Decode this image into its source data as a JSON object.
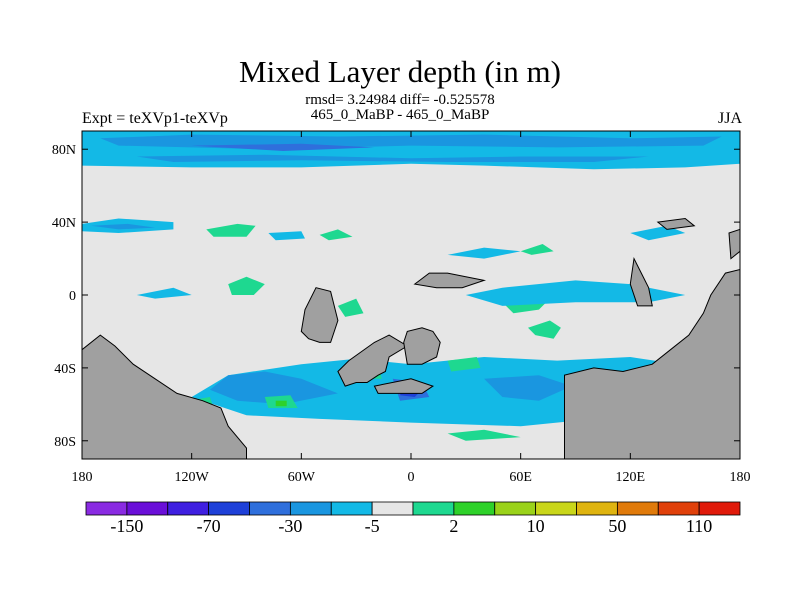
{
  "header": {
    "title": "Mixed Layer depth (in m)",
    "subtitle_line1": "rmsd= 3.24984 diff= -0.525578",
    "subtitle_line2": "465_0_MaBP - 465_0_MaBP",
    "left_label": "Expt = teXVp1-teXVp",
    "right_label": "JJA"
  },
  "chart_data": {
    "type": "heatmap",
    "title": "Mixed Layer depth (in m)",
    "xlabel": "",
    "ylabel": "",
    "x_range": [
      -180,
      180
    ],
    "y_range": [
      -90,
      90
    ],
    "x_ticks": [
      {
        "value": -180,
        "label": "180"
      },
      {
        "value": -120,
        "label": "120W"
      },
      {
        "value": -60,
        "label": "60W"
      },
      {
        "value": 0,
        "label": "0"
      },
      {
        "value": 60,
        "label": "60E"
      },
      {
        "value": 120,
        "label": "120E"
      },
      {
        "value": 180,
        "label": "180"
      }
    ],
    "y_ticks": [
      {
        "value": 80,
        "label": "80N"
      },
      {
        "value": 40,
        "label": "40N"
      },
      {
        "value": 0,
        "label": "0"
      },
      {
        "value": -40,
        "label": "40S"
      },
      {
        "value": -80,
        "label": "80S"
      }
    ],
    "background_fill": "#e6e6e6",
    "land_color": "#a0a0a0",
    "colorbar": {
      "colors": [
        "#8a2be2",
        "#6a0fd8",
        "#3f1fe0",
        "#1e40d8",
        "#2f6fdc",
        "#1a96e0",
        "#13b9e6",
        "#e6e6e6",
        "#1ed890",
        "#2ed12a",
        "#9ad21a",
        "#c9d61a",
        "#dfb410",
        "#e07a0a",
        "#e0400a",
        "#e01a0a"
      ],
      "labels": [
        {
          "boundary": 1,
          "label": "-150"
        },
        {
          "boundary": 3,
          "label": "-70"
        },
        {
          "boundary": 5,
          "label": "-30"
        },
        {
          "boundary": 7,
          "label": "-5"
        },
        {
          "boundary": 9,
          "label": "2"
        },
        {
          "boundary": 11,
          "label": "10"
        },
        {
          "boundary": 13,
          "label": "50"
        },
        {
          "boundary": 15,
          "label": "110"
        }
      ]
    },
    "land": [
      [
        [
          -180,
          -90
        ],
        [
          -180,
          -30
        ],
        [
          -170,
          -22
        ],
        [
          -162,
          -28
        ],
        [
          -152,
          -38
        ],
        [
          -140,
          -46
        ],
        [
          -128,
          -54
        ],
        [
          -114,
          -58
        ],
        [
          -104,
          -62
        ],
        [
          -100,
          -72
        ],
        [
          -90,
          -84
        ],
        [
          -90,
          -90
        ]
      ],
      [
        [
          -180,
          -90
        ],
        [
          -180,
          -30
        ]
      ],
      [
        [
          -40,
          -42
        ],
        [
          -34,
          -36
        ],
        [
          -20,
          -26
        ],
        [
          -12,
          -22
        ],
        [
          -2,
          -28
        ],
        [
          -12,
          -34
        ],
        [
          -14,
          -42
        ],
        [
          -18,
          -44
        ],
        [
          -24,
          -48
        ],
        [
          -30,
          -48
        ],
        [
          -36,
          -50
        ]
      ],
      [
        [
          -60,
          -20
        ],
        [
          -58,
          -8
        ],
        [
          -52,
          4
        ],
        [
          -44,
          2
        ],
        [
          -40,
          -14
        ],
        [
          -44,
          -26
        ],
        [
          -50,
          -26
        ],
        [
          -56,
          -24
        ]
      ],
      [
        [
          -4,
          -26
        ],
        [
          -2,
          -20
        ],
        [
          6,
          -18
        ],
        [
          12,
          -20
        ],
        [
          16,
          -26
        ],
        [
          14,
          -34
        ],
        [
          6,
          -38
        ],
        [
          -2,
          -38
        ]
      ],
      [
        [
          2,
          6
        ],
        [
          10,
          12
        ],
        [
          20,
          12
        ],
        [
          30,
          10
        ],
        [
          40,
          8
        ],
        [
          28,
          4
        ],
        [
          14,
          4
        ]
      ],
      [
        [
          -20,
          -50
        ],
        [
          0,
          -46
        ],
        [
          12,
          -50
        ],
        [
          6,
          -54
        ],
        [
          -18,
          -54
        ]
      ],
      [
        [
          84,
          -90
        ],
        [
          84,
          -44
        ],
        [
          100,
          -40
        ],
        [
          116,
          -42
        ],
        [
          132,
          -38
        ],
        [
          142,
          -30
        ],
        [
          152,
          -22
        ],
        [
          160,
          -10
        ],
        [
          164,
          0
        ],
        [
          172,
          12
        ],
        [
          180,
          14
        ],
        [
          180,
          -90
        ]
      ],
      [
        [
          122,
          20
        ],
        [
          126,
          12
        ],
        [
          130,
          4
        ],
        [
          132,
          -6
        ],
        [
          124,
          -6
        ],
        [
          120,
          6
        ]
      ],
      [
        [
          135,
          40
        ],
        [
          150,
          42
        ],
        [
          155,
          38
        ],
        [
          140,
          36
        ]
      ],
      [
        [
          175,
          20
        ],
        [
          180,
          24
        ],
        [
          180,
          36
        ],
        [
          174,
          34
        ]
      ]
    ],
    "bands": [
      {
        "level": 6,
        "pts": [
          [
            -180,
            90
          ],
          [
            180,
            90
          ],
          [
            180,
            72
          ],
          [
            150,
            70
          ],
          [
            100,
            69
          ],
          [
            40,
            71
          ],
          [
            0,
            72
          ],
          [
            -60,
            70
          ],
          [
            -120,
            70
          ],
          [
            -180,
            71
          ]
        ]
      },
      {
        "level": 5,
        "pts": [
          [
            -170,
            86
          ],
          [
            -120,
            88
          ],
          [
            -40,
            87
          ],
          [
            40,
            88
          ],
          [
            120,
            86
          ],
          [
            170,
            87
          ],
          [
            160,
            82
          ],
          [
            80,
            81
          ],
          [
            0,
            82
          ],
          [
            -80,
            80
          ],
          [
            -160,
            82
          ]
        ]
      },
      {
        "level": 5,
        "pts": [
          [
            -150,
            76
          ],
          [
            -80,
            77
          ],
          [
            0,
            75
          ],
          [
            60,
            76
          ],
          [
            130,
            76
          ],
          [
            100,
            73
          ],
          [
            20,
            73
          ],
          [
            -60,
            74
          ],
          [
            -130,
            73
          ]
        ]
      },
      {
        "level": 4,
        "pts": [
          [
            -120,
            82
          ],
          [
            -60,
            83
          ],
          [
            -20,
            81
          ],
          [
            -70,
            79
          ]
        ]
      },
      {
        "level": 6,
        "pts": [
          [
            -180,
            39
          ],
          [
            -160,
            42
          ],
          [
            -130,
            40
          ],
          [
            -130,
            36
          ],
          [
            -160,
            34
          ],
          [
            -180,
            35
          ]
        ]
      },
      {
        "level": 5,
        "pts": [
          [
            -175,
            38
          ],
          [
            -155,
            39
          ],
          [
            -140,
            37
          ],
          [
            -160,
            36
          ]
        ]
      },
      {
        "level": 8,
        "pts": [
          [
            -112,
            36
          ],
          [
            -95,
            39
          ],
          [
            -85,
            38
          ],
          [
            -90,
            32
          ],
          [
            -108,
            32
          ]
        ]
      },
      {
        "level": 6,
        "pts": [
          [
            -78,
            34
          ],
          [
            -60,
            35
          ],
          [
            -58,
            31
          ],
          [
            -74,
            30
          ]
        ]
      },
      {
        "level": 8,
        "pts": [
          [
            -50,
            33
          ],
          [
            -40,
            36
          ],
          [
            -32,
            32
          ],
          [
            -45,
            30
          ]
        ]
      },
      {
        "level": 6,
        "pts": [
          [
            -60,
            -38
          ],
          [
            -30,
            -35
          ],
          [
            0,
            -38
          ],
          [
            40,
            -34
          ],
          [
            80,
            -36
          ],
          [
            120,
            -34
          ],
          [
            160,
            -40
          ],
          [
            170,
            -60
          ],
          [
            120,
            -66
          ],
          [
            60,
            -72
          ],
          [
            0,
            -70
          ],
          [
            -50,
            -68
          ],
          [
            -90,
            -66
          ],
          [
            -120,
            -56
          ],
          [
            -100,
            -44
          ]
        ]
      },
      {
        "level": 5,
        "pts": [
          [
            -100,
            -44
          ],
          [
            -80,
            -42
          ],
          [
            -60,
            -46
          ],
          [
            -40,
            -54
          ],
          [
            -70,
            -60
          ],
          [
            -95,
            -58
          ],
          [
            -110,
            -52
          ]
        ]
      },
      {
        "level": 4,
        "pts": [
          [
            -10,
            -46
          ],
          [
            6,
            -48
          ],
          [
            10,
            -56
          ],
          [
            -6,
            -58
          ]
        ]
      },
      {
        "level": 3,
        "pts": [
          [
            -4,
            -50
          ],
          [
            6,
            -52
          ],
          [
            2,
            -56
          ],
          [
            -6,
            -55
          ]
        ]
      },
      {
        "level": 5,
        "pts": [
          [
            40,
            -46
          ],
          [
            70,
            -44
          ],
          [
            88,
            -50
          ],
          [
            70,
            -58
          ],
          [
            50,
            -56
          ]
        ]
      },
      {
        "level": 8,
        "pts": [
          [
            -80,
            -56
          ],
          [
            -66,
            -55
          ],
          [
            -62,
            -62
          ],
          [
            -78,
            -62
          ]
        ]
      },
      {
        "level": 9,
        "pts": [
          [
            -74,
            -58
          ],
          [
            -68,
            -58
          ],
          [
            -68,
            -61
          ],
          [
            -74,
            -61
          ]
        ]
      },
      {
        "level": 8,
        "pts": [
          [
            -122,
            -58
          ],
          [
            -110,
            -56
          ],
          [
            -108,
            -62
          ],
          [
            -120,
            -62
          ]
        ]
      },
      {
        "level": 8,
        "pts": [
          [
            -30,
            -40
          ],
          [
            -18,
            -38
          ],
          [
            -16,
            -46
          ],
          [
            -28,
            -46
          ]
        ]
      },
      {
        "level": 8,
        "pts": [
          [
            20,
            -36
          ],
          [
            36,
            -34
          ],
          [
            38,
            -40
          ],
          [
            22,
            -42
          ]
        ]
      },
      {
        "level": 8,
        "pts": [
          [
            100,
            -46
          ],
          [
            120,
            -44
          ],
          [
            118,
            -50
          ],
          [
            100,
            -50
          ]
        ]
      },
      {
        "level": 8,
        "pts": [
          [
            20,
            -76
          ],
          [
            40,
            -74
          ],
          [
            60,
            -78
          ],
          [
            30,
            -80
          ]
        ]
      },
      {
        "level": 8,
        "pts": [
          [
            64,
            -18
          ],
          [
            76,
            -14
          ],
          [
            82,
            -18
          ],
          [
            78,
            -24
          ],
          [
            68,
            -22
          ]
        ]
      },
      {
        "level": 8,
        "pts": [
          [
            50,
            -4
          ],
          [
            64,
            2
          ],
          [
            78,
            0
          ],
          [
            70,
            -8
          ],
          [
            56,
            -10
          ]
        ]
      },
      {
        "level": 6,
        "pts": [
          [
            30,
            0
          ],
          [
            50,
            4
          ],
          [
            90,
            8
          ],
          [
            120,
            6
          ],
          [
            150,
            0
          ],
          [
            130,
            -4
          ],
          [
            90,
            -4
          ],
          [
            50,
            -6
          ]
        ]
      },
      {
        "level": 8,
        "pts": [
          [
            -100,
            6
          ],
          [
            -90,
            10
          ],
          [
            -80,
            6
          ],
          [
            -86,
            0
          ],
          [
            -98,
            0
          ]
        ]
      },
      {
        "level": 8,
        "pts": [
          [
            -40,
            -6
          ],
          [
            -30,
            -2
          ],
          [
            -26,
            -10
          ],
          [
            -36,
            -12
          ]
        ]
      },
      {
        "level": 6,
        "pts": [
          [
            -150,
            0
          ],
          [
            -130,
            4
          ],
          [
            -120,
            0
          ],
          [
            -140,
            -2
          ]
        ]
      },
      {
        "level": 6,
        "pts": [
          [
            20,
            22
          ],
          [
            40,
            26
          ],
          [
            60,
            24
          ],
          [
            40,
            20
          ]
        ]
      },
      {
        "level": 6,
        "pts": [
          [
            120,
            34
          ],
          [
            140,
            38
          ],
          [
            150,
            34
          ],
          [
            130,
            30
          ]
        ]
      },
      {
        "level": 8,
        "pts": [
          [
            60,
            24
          ],
          [
            72,
            28
          ],
          [
            78,
            24
          ],
          [
            66,
            22
          ]
        ]
      }
    ]
  }
}
